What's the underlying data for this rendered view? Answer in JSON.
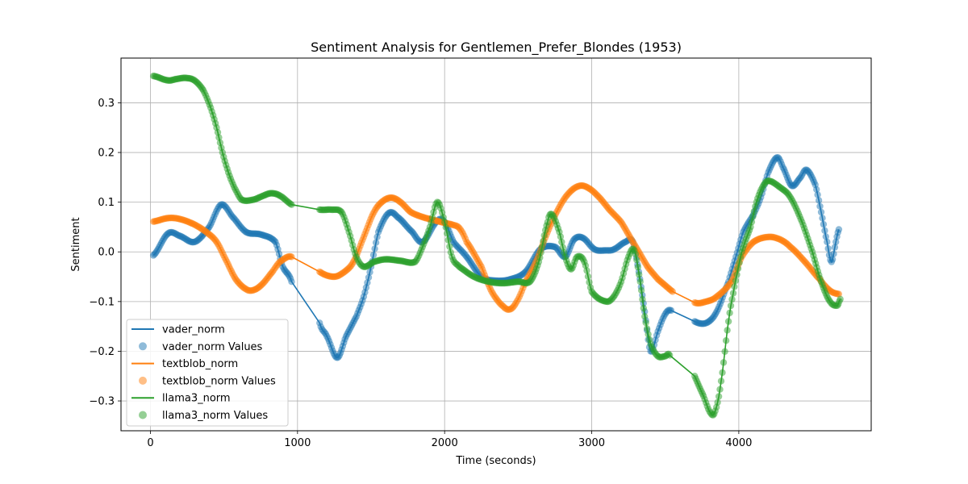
{
  "chart_data": {
    "type": "line",
    "title": "Sentiment Analysis for Gentlemen_Prefer_Blondes (1953)",
    "xlabel": "Time (seconds)",
    "ylabel": "Sentiment",
    "xlim": [
      -200,
      4900
    ],
    "ylim": [
      -0.36,
      0.39
    ],
    "xticks": [
      0,
      1000,
      2000,
      3000,
      4000
    ],
    "yticks": [
      -0.3,
      -0.2,
      -0.1,
      0.0,
      0.1,
      0.2,
      0.3
    ],
    "xtick_labels": [
      "0",
      "1000",
      "2000",
      "3000",
      "4000"
    ],
    "ytick_labels": [
      "−0.3",
      "−0.2",
      "−0.1",
      "0.0",
      "0.1",
      "0.2",
      "0.3"
    ],
    "grid": true,
    "legend_position": "lower-left",
    "legend": [
      {
        "label": "vader_norm",
        "kind": "line",
        "color": "#1f77b4"
      },
      {
        "label": "vader_norm Values",
        "kind": "marker",
        "color": "#1f77b4"
      },
      {
        "label": "textblob_norm",
        "kind": "line",
        "color": "#ff7f0e"
      },
      {
        "label": "textblob_norm Values",
        "kind": "marker",
        "color": "#ff7f0e"
      },
      {
        "label": "llama3_norm",
        "kind": "line",
        "color": "#2ca02c"
      },
      {
        "label": "llama3_norm Values",
        "kind": "marker",
        "color": "#2ca02c"
      }
    ],
    "series": [
      {
        "name": "vader_norm",
        "color": "#1f77b4",
        "points": [
          [
            20,
            -0.007
          ],
          [
            120,
            0.037
          ],
          [
            200,
            0.032
          ],
          [
            300,
            0.02
          ],
          [
            400,
            0.05
          ],
          [
            480,
            0.095
          ],
          [
            560,
            0.07
          ],
          [
            650,
            0.04
          ],
          [
            750,
            0.035
          ],
          [
            850,
            0.02
          ],
          [
            900,
            -0.03
          ],
          [
            960,
            -0.06
          ],
          [
            1150,
            -0.143
          ],
          [
            1200,
            -0.17
          ],
          [
            1270,
            -0.213
          ],
          [
            1330,
            -0.17
          ],
          [
            1400,
            -0.13
          ],
          [
            1450,
            -0.09
          ],
          [
            1500,
            -0.03
          ],
          [
            1550,
            0.04
          ],
          [
            1620,
            0.078
          ],
          [
            1680,
            0.07
          ],
          [
            1780,
            0.04
          ],
          [
            1850,
            0.02
          ],
          [
            1950,
            0.062
          ],
          [
            2000,
            0.06
          ],
          [
            2060,
            0.02
          ],
          [
            2150,
            -0.01
          ],
          [
            2250,
            -0.05
          ],
          [
            2350,
            -0.058
          ],
          [
            2450,
            -0.055
          ],
          [
            2550,
            -0.04
          ],
          [
            2650,
            0.005
          ],
          [
            2750,
            0.01
          ],
          [
            2820,
            -0.01
          ],
          [
            2880,
            0.025
          ],
          [
            2940,
            0.028
          ],
          [
            3020,
            0.005
          ],
          [
            3100,
            0.003
          ],
          [
            3150,
            0.005
          ],
          [
            3230,
            0.02
          ],
          [
            3280,
            0.02
          ],
          [
            3320,
            -0.04
          ],
          [
            3360,
            -0.12
          ],
          [
            3400,
            -0.2
          ],
          [
            3450,
            -0.16
          ],
          [
            3500,
            -0.125
          ],
          [
            3540,
            -0.118
          ],
          [
            3700,
            -0.14
          ],
          [
            3780,
            -0.143
          ],
          [
            3850,
            -0.12
          ],
          [
            3930,
            -0.06
          ],
          [
            3980,
            -0.01
          ],
          [
            4030,
            0.04
          ],
          [
            4100,
            0.075
          ],
          [
            4150,
            0.11
          ],
          [
            4200,
            0.16
          ],
          [
            4260,
            0.19
          ],
          [
            4300,
            0.17
          ],
          [
            4360,
            0.133
          ],
          [
            4420,
            0.15
          ],
          [
            4460,
            0.165
          ],
          [
            4520,
            0.135
          ],
          [
            4560,
            0.08
          ],
          [
            4600,
            0.02
          ],
          [
            4630,
            -0.02
          ],
          [
            4660,
            0.02
          ],
          [
            4680,
            0.045
          ]
        ]
      },
      {
        "name": "textblob_norm",
        "color": "#ff7f0e",
        "points": [
          [
            20,
            0.061
          ],
          [
            120,
            0.068
          ],
          [
            200,
            0.066
          ],
          [
            300,
            0.055
          ],
          [
            380,
            0.04
          ],
          [
            450,
            0.02
          ],
          [
            520,
            -0.02
          ],
          [
            580,
            -0.055
          ],
          [
            650,
            -0.075
          ],
          [
            700,
            -0.077
          ],
          [
            760,
            -0.065
          ],
          [
            830,
            -0.04
          ],
          [
            880,
            -0.02
          ],
          [
            960,
            -0.01
          ],
          [
            1150,
            -0.04
          ],
          [
            1250,
            -0.05
          ],
          [
            1320,
            -0.04
          ],
          [
            1380,
            -0.02
          ],
          [
            1450,
            0.03
          ],
          [
            1520,
            0.08
          ],
          [
            1580,
            0.102
          ],
          [
            1640,
            0.109
          ],
          [
            1700,
            0.1
          ],
          [
            1770,
            0.08
          ],
          [
            1850,
            0.07
          ],
          [
            1950,
            0.062
          ],
          [
            2050,
            0.055
          ],
          [
            2100,
            0.048
          ],
          [
            2150,
            0.02
          ],
          [
            2250,
            -0.03
          ],
          [
            2320,
            -0.08
          ],
          [
            2400,
            -0.11
          ],
          [
            2450,
            -0.115
          ],
          [
            2500,
            -0.095
          ],
          [
            2550,
            -0.06
          ],
          [
            2620,
            -0.02
          ],
          [
            2700,
            0.04
          ],
          [
            2780,
            0.09
          ],
          [
            2850,
            0.12
          ],
          [
            2920,
            0.133
          ],
          [
            2980,
            0.128
          ],
          [
            3050,
            0.11
          ],
          [
            3120,
            0.085
          ],
          [
            3200,
            0.06
          ],
          [
            3260,
            0.03
          ],
          [
            3320,
            0.0
          ],
          [
            3380,
            -0.03
          ],
          [
            3450,
            -0.055
          ],
          [
            3550,
            -0.08
          ],
          [
            3700,
            -0.102
          ],
          [
            3780,
            -0.1
          ],
          [
            3850,
            -0.09
          ],
          [
            3950,
            -0.06
          ],
          [
            4020,
            -0.01
          ],
          [
            4100,
            0.02
          ],
          [
            4200,
            0.03
          ],
          [
            4280,
            0.025
          ],
          [
            4350,
            0.01
          ],
          [
            4450,
            -0.02
          ],
          [
            4550,
            -0.055
          ],
          [
            4620,
            -0.078
          ],
          [
            4680,
            -0.085
          ]
        ]
      },
      {
        "name": "llama3_norm",
        "color": "#2ca02c",
        "points": [
          [
            20,
            0.354
          ],
          [
            120,
            0.345
          ],
          [
            180,
            0.348
          ],
          [
            240,
            0.35
          ],
          [
            300,
            0.345
          ],
          [
            360,
            0.325
          ],
          [
            410,
            0.29
          ],
          [
            450,
            0.25
          ],
          [
            490,
            0.2
          ],
          [
            530,
            0.16
          ],
          [
            570,
            0.13
          ],
          [
            620,
            0.105
          ],
          [
            700,
            0.105
          ],
          [
            760,
            0.112
          ],
          [
            820,
            0.118
          ],
          [
            880,
            0.113
          ],
          [
            960,
            0.095
          ],
          [
            1150,
            0.085
          ],
          [
            1230,
            0.085
          ],
          [
            1300,
            0.08
          ],
          [
            1350,
            0.04
          ],
          [
            1400,
            -0.01
          ],
          [
            1450,
            -0.03
          ],
          [
            1520,
            -0.02
          ],
          [
            1600,
            -0.015
          ],
          [
            1700,
            -0.018
          ],
          [
            1800,
            -0.02
          ],
          [
            1850,
            0.01
          ],
          [
            1900,
            0.05
          ],
          [
            1950,
            0.1
          ],
          [
            2000,
            0.06
          ],
          [
            2050,
            -0.01
          ],
          [
            2100,
            -0.03
          ],
          [
            2200,
            -0.05
          ],
          [
            2300,
            -0.06
          ],
          [
            2400,
            -0.063
          ],
          [
            2500,
            -0.06
          ],
          [
            2580,
            -0.06
          ],
          [
            2640,
            -0.02
          ],
          [
            2700,
            0.06
          ],
          [
            2730,
            0.075
          ],
          [
            2780,
            0.04
          ],
          [
            2820,
            -0.01
          ],
          [
            2860,
            -0.035
          ],
          [
            2900,
            -0.01
          ],
          [
            2950,
            -0.02
          ],
          [
            3000,
            -0.08
          ],
          [
            3100,
            -0.1
          ],
          [
            3150,
            -0.09
          ],
          [
            3200,
            -0.06
          ],
          [
            3250,
            -0.01
          ],
          [
            3290,
            0.003
          ],
          [
            3330,
            -0.06
          ],
          [
            3360,
            -0.13
          ],
          [
            3400,
            -0.185
          ],
          [
            3450,
            -0.21
          ],
          [
            3500,
            -0.21
          ],
          [
            3530,
            -0.208
          ],
          [
            3700,
            -0.25
          ],
          [
            3760,
            -0.29
          ],
          [
            3810,
            -0.325
          ],
          [
            3840,
            -0.32
          ],
          [
            3880,
            -0.26
          ],
          [
            3930,
            -0.14
          ],
          [
            3970,
            -0.07
          ],
          [
            4020,
            0.0
          ],
          [
            4080,
            0.05
          ],
          [
            4120,
            0.1
          ],
          [
            4160,
            0.13
          ],
          [
            4200,
            0.143
          ],
          [
            4280,
            0.13
          ],
          [
            4350,
            0.11
          ],
          [
            4430,
            0.06
          ],
          [
            4500,
            0.0
          ],
          [
            4560,
            -0.06
          ],
          [
            4620,
            -0.1
          ],
          [
            4670,
            -0.108
          ],
          [
            4690,
            -0.095
          ]
        ]
      }
    ]
  }
}
